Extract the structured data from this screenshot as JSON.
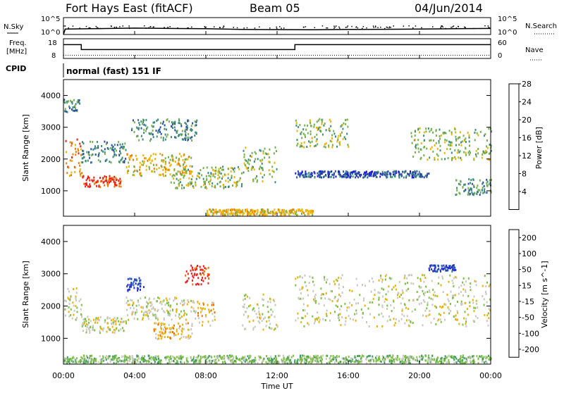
{
  "header": {
    "station": "Fort Hays East (fitACF)",
    "beam": "Beam 05",
    "date": "04/Jun/2014"
  },
  "strip_noise": {
    "left_label": "N.Sky",
    "right_label": "N.Search",
    "left_ticks": [
      "10^5",
      "10^0"
    ],
    "right_ticks": [
      "10^5",
      "10^0"
    ]
  },
  "strip_freq": {
    "left_label_1": "Freq.",
    "left_label_2": "[MHz]",
    "right_label": "Nave",
    "left_ticks": [
      "18",
      "8"
    ],
    "right_ticks": [
      "60",
      "0"
    ]
  },
  "cpid": {
    "label": "CPID",
    "mode": "normal (fast) 151 IF"
  },
  "time_axis": {
    "title": "Time UT",
    "ticks": [
      "00:00",
      "04:00",
      "08:00",
      "12:00",
      "16:00",
      "20:00",
      "00:00"
    ]
  },
  "chart_data": [
    {
      "type": "line",
      "title": "N.Sky / N.Search",
      "x_range_hours": [
        0,
        24
      ],
      "y_log_range": [
        0,
        5
      ],
      "series": [
        {
          "name": "N.Sky",
          "x": [
            0,
            0.1,
            2,
            4,
            6,
            8,
            10,
            12,
            14,
            16,
            18,
            20,
            22,
            24
          ],
          "y_log": [
            0,
            1.6,
            1.75,
            1.9,
            1.8,
            1.7,
            1.5,
            1.45,
            1.4,
            1.5,
            1.55,
            1.6,
            1.7,
            1.8
          ]
        }
      ]
    },
    {
      "type": "line",
      "title": "Freq./Nave",
      "x_range_hours": [
        0,
        24
      ],
      "ylim_left": [
        8,
        18
      ],
      "ylim_right": [
        0,
        60
      ],
      "series": [
        {
          "name": "Freq.",
          "x": [
            0,
            1,
            1,
            13,
            13,
            24
          ],
          "y": [
            15,
            15,
            12.5,
            12.5,
            15,
            15
          ]
        },
        {
          "name": "Nave",
          "x": [
            0,
            24
          ],
          "y": [
            10,
            10
          ]
        }
      ]
    },
    {
      "type": "heatmap",
      "title": "Power",
      "xlabel": "Time UT",
      "ylabel": "Slant Range [km]",
      "unit": "[dB]",
      "x_range_hours": [
        0,
        24
      ],
      "ylim_km": [
        200,
        4500
      ],
      "yticks": [
        1000,
        2000,
        3000,
        4000
      ],
      "colorbar_ticks": [
        4,
        8,
        12,
        16,
        20,
        24,
        28
      ],
      "colors": [
        "#1b1bd6",
        "#2b4fa8",
        "#3d8c7a",
        "#76b04c",
        "#f0b400",
        "#f07e00",
        "#e82010"
      ],
      "features": [
        {
          "t0": 0.0,
          "t1": 1.0,
          "r0": 1500,
          "r1": 2700,
          "level": 5
        },
        {
          "t0": 0.0,
          "t1": 0.9,
          "r0": 3500,
          "r1": 3900,
          "level": 2
        },
        {
          "t0": 1.0,
          "t1": 3.2,
          "r0": 1150,
          "r1": 1500,
          "level": 6
        },
        {
          "t0": 1.0,
          "t1": 3.5,
          "r0": 1900,
          "r1": 2600,
          "level": 2
        },
        {
          "t0": 3.5,
          "t1": 7.2,
          "r0": 1500,
          "r1": 2200,
          "level": 4
        },
        {
          "t0": 3.8,
          "t1": 7.5,
          "r0": 2600,
          "r1": 3300,
          "level": 2
        },
        {
          "t0": 6.0,
          "t1": 10.0,
          "r0": 1100,
          "r1": 1800,
          "level": 3
        },
        {
          "t0": 10.0,
          "t1": 12.0,
          "r0": 1300,
          "r1": 2400,
          "level": 3
        },
        {
          "t0": 13.0,
          "t1": 16.0,
          "r0": 2400,
          "r1": 3300,
          "level": 3
        },
        {
          "t0": 13.0,
          "t1": 20.5,
          "r0": 1450,
          "r1": 1650,
          "level": 1
        },
        {
          "t0": 19.5,
          "t1": 24.0,
          "r0": 2000,
          "r1": 3000,
          "level": 3
        },
        {
          "t0": 22.0,
          "t1": 24.0,
          "r0": 900,
          "r1": 1400,
          "level": 2
        },
        {
          "t0": 8.0,
          "t1": 14.0,
          "r0": 250,
          "r1": 450,
          "level": 4
        }
      ]
    },
    {
      "type": "heatmap",
      "title": "Velocity",
      "xlabel": "Time UT",
      "ylabel": "Slant Range [km]",
      "unit": "[m s^-1]",
      "x_range_hours": [
        0,
        24
      ],
      "ylim_km": [
        200,
        4500
      ],
      "yticks": [
        1000,
        2000,
        3000,
        4000
      ],
      "colorbar_ticks": [
        "200",
        "100",
        "50",
        "15",
        "-15",
        "-50",
        "-100",
        "-200"
      ],
      "colors": [
        "#2233cc",
        "#2a6aa8",
        "#3e9a60",
        "#7cc040",
        "#c8c8c0",
        "#f0b000",
        "#f07000",
        "#e82020"
      ],
      "features": [
        {
          "t0": 0.0,
          "t1": 1.0,
          "r0": 1600,
          "r1": 2600,
          "level": 4
        },
        {
          "t0": 1.0,
          "t1": 3.5,
          "r0": 1200,
          "r1": 1700,
          "level": 4
        },
        {
          "t0": 3.5,
          "t1": 7.5,
          "r0": 1600,
          "r1": 2300,
          "level": 4
        },
        {
          "t0": 3.5,
          "t1": 4.5,
          "r0": 2500,
          "r1": 2900,
          "level": 0
        },
        {
          "t0": 6.8,
          "t1": 8.2,
          "r0": 2700,
          "r1": 3300,
          "level": 7
        },
        {
          "t0": 5.0,
          "t1": 7.2,
          "r0": 1000,
          "r1": 1500,
          "level": 5
        },
        {
          "t0": 7.5,
          "t1": 8.5,
          "r0": 1400,
          "r1": 2200,
          "level": 5
        },
        {
          "t0": 10.0,
          "t1": 12.0,
          "r0": 1300,
          "r1": 2400,
          "level": 4
        },
        {
          "t0": 13.0,
          "t1": 24.0,
          "r0": 1400,
          "r1": 3000,
          "level": 4
        },
        {
          "t0": 20.5,
          "t1": 22.0,
          "r0": 3100,
          "r1": 3300,
          "level": 0
        },
        {
          "t0": 0.0,
          "t1": 24.0,
          "r0": 250,
          "r1": 500,
          "level": 3
        }
      ]
    }
  ]
}
